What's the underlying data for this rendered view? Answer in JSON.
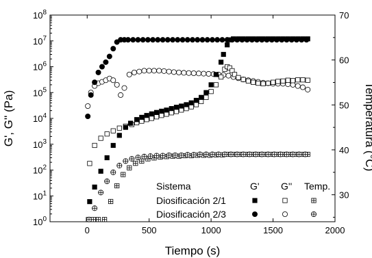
{
  "chart_data": {
    "type": "scatter",
    "xlabel": "Tiempo (s)",
    "ylabel_left": "G', G'' (Pa)",
    "ylabel_right": "Temperatura (°C)",
    "xlim": [
      -300,
      2000
    ],
    "x_ticks": [
      0,
      500,
      1000,
      1500,
      2000
    ],
    "y_left_scale": "log",
    "y_left_lim": [
      1,
      100000000
    ],
    "y_left_ticks": [
      "10^0",
      "10^1",
      "10^2",
      "10^3",
      "10^4",
      "10^5",
      "10^6",
      "10^7",
      "10^8"
    ],
    "y_right_lim": [
      24,
      70
    ],
    "y_right_ticks": [
      30,
      40,
      50,
      60,
      70
    ],
    "legend": {
      "placement": "bottom-right",
      "header": "Sistema",
      "columns": [
        "G'",
        "G''",
        "Temp."
      ],
      "rows": [
        "Diosificación 2/1",
        "Diosificación 2/3"
      ]
    },
    "series": [
      {
        "name": "Diosificación 2/1 G'",
        "axis": "left",
        "marker": "square-filled",
        "x": [
          20,
          60,
          110,
          160,
          210,
          260,
          310,
          350,
          400,
          440,
          480,
          520,
          560,
          600,
          640,
          680,
          720,
          760,
          800,
          840,
          880,
          920,
          960,
          1000,
          1040,
          1080,
          1100,
          1130,
          1150,
          1180,
          1220,
          1260,
          1300,
          1340,
          1380,
          1420,
          1460,
          1500,
          1540,
          1580,
          1620,
          1660,
          1700,
          1740,
          1780
        ],
        "y": [
          6,
          22,
          90,
          300,
          900,
          2200,
          4500,
          6500,
          9000,
          11000,
          13000,
          15000,
          17000,
          19000,
          21000,
          24000,
          27000,
          30000,
          34000,
          40000,
          50000,
          65000,
          100000,
          200000,
          500000,
          1500000,
          3000000,
          7000000,
          11000000,
          12000000,
          12000000,
          12000000,
          12000000,
          12000000,
          12000000,
          12000000,
          12000000,
          12000000,
          12000000,
          12000000,
          12000000,
          12000000,
          12000000,
          12000000,
          12000000
        ]
      },
      {
        "name": "Diosificación 2/1 G''",
        "axis": "left",
        "marker": "square-open",
        "x": [
          20,
          60,
          110,
          160,
          210,
          260,
          310,
          360,
          400,
          440,
          480,
          520,
          560,
          600,
          640,
          680,
          720,
          760,
          800,
          840,
          880,
          920,
          960,
          1000,
          1040,
          1080,
          1110,
          1130,
          1150,
          1170,
          1190,
          1220,
          1260,
          1300,
          1340,
          1380,
          1420,
          1460,
          1500,
          1540,
          1580,
          1620,
          1660,
          1700,
          1740,
          1780
        ],
        "y": [
          180,
          900,
          1700,
          2500,
          3300,
          4200,
          5000,
          5800,
          6800,
          7800,
          9000,
          10000,
          11500,
          13000,
          14500,
          16500,
          18500,
          21000,
          24000,
          28000,
          34000,
          45000,
          65000,
          110000,
          200000,
          400000,
          800000,
          1000000,
          900000,
          700000,
          500000,
          380000,
          320000,
          280000,
          250000,
          230000,
          220000,
          230000,
          250000,
          270000,
          280000,
          300000,
          290000,
          310000,
          310000,
          300000
        ]
      },
      {
        "name": "Diosificación 2/1 Temp.",
        "axis": "right",
        "marker": "square-crossed",
        "x": [
          10,
          50,
          90,
          140,
          190,
          240,
          290,
          340,
          390,
          440,
          490,
          540,
          590,
          640,
          690,
          740,
          790,
          840,
          890,
          940,
          990,
          1040,
          1090,
          1140,
          1190,
          1240,
          1290,
          1340,
          1390,
          1440,
          1490,
          1540,
          1590,
          1640,
          1690,
          1740,
          1780
        ],
        "y": [
          24.5,
          24.5,
          24.5,
          24.5,
          28.5,
          32,
          34.5,
          36,
          37,
          37.5,
          38,
          38.2,
          38.4,
          38.5,
          38.6,
          38.6,
          38.7,
          38.7,
          38.8,
          38.8,
          38.8,
          38.9,
          38.9,
          39,
          39,
          39,
          39,
          39,
          39,
          39,
          39,
          39,
          39,
          39,
          39,
          39,
          39
        ]
      },
      {
        "name": "Diosificación 2/3 G'",
        "axis": "left",
        "marker": "circle-filled",
        "x": [
          5,
          30,
          60,
          90,
          120,
          150,
          180,
          210,
          240,
          270,
          300,
          330,
          370,
          410,
          450,
          490,
          530,
          570,
          610,
          650,
          690,
          730,
          770,
          810,
          850,
          890,
          930,
          970,
          1010,
          1050,
          1090,
          1130,
          1170,
          1210,
          1250,
          1290,
          1330,
          1370,
          1410,
          1450,
          1490,
          1530,
          1570,
          1610,
          1650,
          1690,
          1730,
          1770
        ],
        "y": [
          12000,
          80000,
          250000,
          600000,
          1000000,
          1500000,
          2500000,
          5000000,
          9000000,
          11000000,
          11000000,
          11000000,
          11000000,
          11000000,
          11000000,
          11000000,
          11000000,
          11000000,
          11000000,
          11000000,
          11000000,
          11000000,
          11000000,
          11000000,
          11000000,
          11000000,
          11000000,
          11000000,
          11000000,
          11000000,
          11000000,
          11000000,
          11000000,
          11000000,
          11000000,
          11000000,
          11000000,
          11000000,
          11000000,
          11000000,
          11000000,
          11000000,
          11000000,
          11000000,
          11000000,
          11000000,
          11000000,
          11000000
        ]
      },
      {
        "name": "Diosificación 2/3 G''",
        "axis": "left",
        "marker": "circle-open",
        "x": [
          5,
          30,
          60,
          90,
          120,
          150,
          180,
          210,
          240,
          270,
          300,
          340,
          380,
          420,
          460,
          500,
          540,
          580,
          620,
          660,
          700,
          740,
          780,
          820,
          860,
          900,
          940,
          980,
          1020,
          1060,
          1100,
          1140,
          1180,
          1220,
          1260,
          1300,
          1340,
          1380,
          1420,
          1460,
          1500,
          1540,
          1580,
          1620,
          1660,
          1700,
          1740,
          1780
        ],
        "y": [
          30000,
          100000,
          180000,
          230000,
          260000,
          300000,
          350000,
          300000,
          200000,
          80000,
          150000,
          500000,
          600000,
          650000,
          700000,
          700000,
          700000,
          700000,
          680000,
          650000,
          620000,
          600000,
          580000,
          570000,
          560000,
          550000,
          540000,
          530000,
          520000,
          500000,
          480000,
          450000,
          400000,
          360000,
          320000,
          300000,
          280000,
          260000,
          240000,
          230000,
          220000,
          220000,
          220000,
          210000,
          200000,
          180000,
          160000,
          130000
        ]
      },
      {
        "name": "Diosificación 2/3 Temp.",
        "axis": "right",
        "marker": "circle-crossed",
        "x": [
          15,
          60,
          110,
          160,
          210,
          260,
          310,
          360,
          410,
          460,
          510,
          560,
          610,
          660,
          710,
          760,
          810,
          860,
          910,
          960,
          1010,
          1060,
          1110,
          1160,
          1210,
          1260,
          1310,
          1360,
          1410,
          1460,
          1510,
          1560,
          1610,
          1660,
          1710,
          1760
        ],
        "y": [
          24.5,
          27,
          30.5,
          33,
          35,
          36.5,
          37.5,
          38,
          38.3,
          38.5,
          38.6,
          38.7,
          38.7,
          38.8,
          38.8,
          38.8,
          38.9,
          38.9,
          39,
          39,
          39,
          39,
          39,
          39,
          39,
          39,
          39,
          39,
          39,
          39,
          39,
          39,
          39,
          39,
          39,
          39
        ]
      }
    ]
  }
}
